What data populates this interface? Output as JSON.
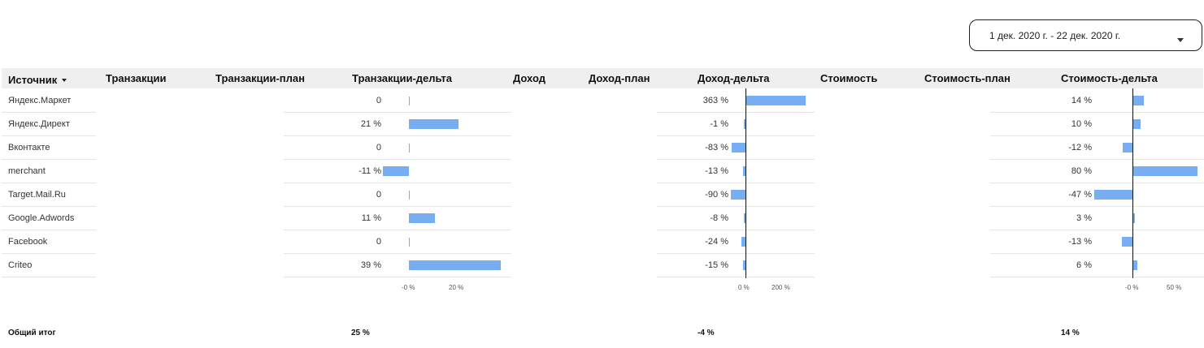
{
  "date_range": {
    "label": "1 дек. 2020 г. - 22 дек. 2020 г.",
    "dropdown_icon": "caret-down-icon"
  },
  "table": {
    "headers": {
      "source": "Источник",
      "transactions": "Транзакции",
      "transactions_plan": "Транзакции-план",
      "transactions_delta": "Транзакции-дельта",
      "revenue": "Доход",
      "revenue_plan": "Доход-план",
      "revenue_delta": "Доход-дельта",
      "cost": "Стоимость",
      "cost_plan": "Стоимость-план",
      "cost_delta": "Стоимость-дельта"
    },
    "sort_icon": "sort-desc-icon",
    "rows": [
      {
        "source": "Яндекс.Маркет",
        "transactions_delta": "0",
        "revenue_delta": "363 %",
        "cost_delta": "14 %"
      },
      {
        "source": "Яндекс.Директ",
        "transactions_delta": "21 %",
        "revenue_delta": "-1 %",
        "cost_delta": "10 %"
      },
      {
        "source": "Вконтакте",
        "transactions_delta": "0",
        "revenue_delta": "-83 %",
        "cost_delta": "-12 %"
      },
      {
        "source": "merchant",
        "transactions_delta": "-11 %",
        "revenue_delta": "-13 %",
        "cost_delta": "80 %"
      },
      {
        "source": "Target.Mail.Ru",
        "transactions_delta": "0",
        "revenue_delta": "-90 %",
        "cost_delta": "-47 %"
      },
      {
        "source": "Google.Adwords",
        "transactions_delta": "11 %",
        "revenue_delta": "-8 %",
        "cost_delta": "3 %"
      },
      {
        "source": "Facebook",
        "transactions_delta": "0",
        "revenue_delta": "-24 %",
        "cost_delta": "-13 %"
      },
      {
        "source": "Criteo",
        "transactions_delta": "39 %",
        "revenue_delta": "-15 %",
        "cost_delta": "6 %"
      }
    ],
    "totals": {
      "label": "Общий итог",
      "transactions_delta": "25 %",
      "revenue_delta": "-4 %",
      "cost_delta": "14 %"
    }
  },
  "chart_data": [
    {
      "type": "bar",
      "categories": [
        "Яндекс.Маркет",
        "Яндекс.Директ",
        "Вконтакте",
        "merchant",
        "Target.Mail.Ru",
        "Google.Adwords",
        "Facebook",
        "Criteo"
      ],
      "values": [
        0,
        21,
        0,
        -11,
        0,
        11,
        0,
        39
      ],
      "ticks": [
        "-0 %",
        "20 %"
      ],
      "tick_values": [
        0,
        20
      ]
    },
    {
      "type": "bar",
      "categories": [
        "Яндекс.Маркет",
        "Яндекс.Директ",
        "Вконтакте",
        "merchant",
        "Target.Mail.Ru",
        "Google.Adwords",
        "Facebook",
        "Criteo"
      ],
      "values": [
        363,
        -1,
        -83,
        -13,
        -90,
        -8,
        -24,
        -15
      ],
      "ticks": [
        "0 %",
        "200 %"
      ],
      "tick_values": [
        0,
        200
      ]
    },
    {
      "type": "bar",
      "categories": [
        "Яндекс.Маркет",
        "Яндекс.Директ",
        "Вконтакте",
        "merchant",
        "Target.Mail.Ru",
        "Google.Adwords",
        "Facebook",
        "Criteo"
      ],
      "values": [
        14,
        10,
        -12,
        80,
        -47,
        3,
        -13,
        6
      ],
      "ticks": [
        "-0 %",
        "50 %"
      ],
      "tick_values": [
        0,
        50
      ]
    }
  ],
  "colors": {
    "bar": "#76aef1",
    "header_bg": "#efefef"
  }
}
